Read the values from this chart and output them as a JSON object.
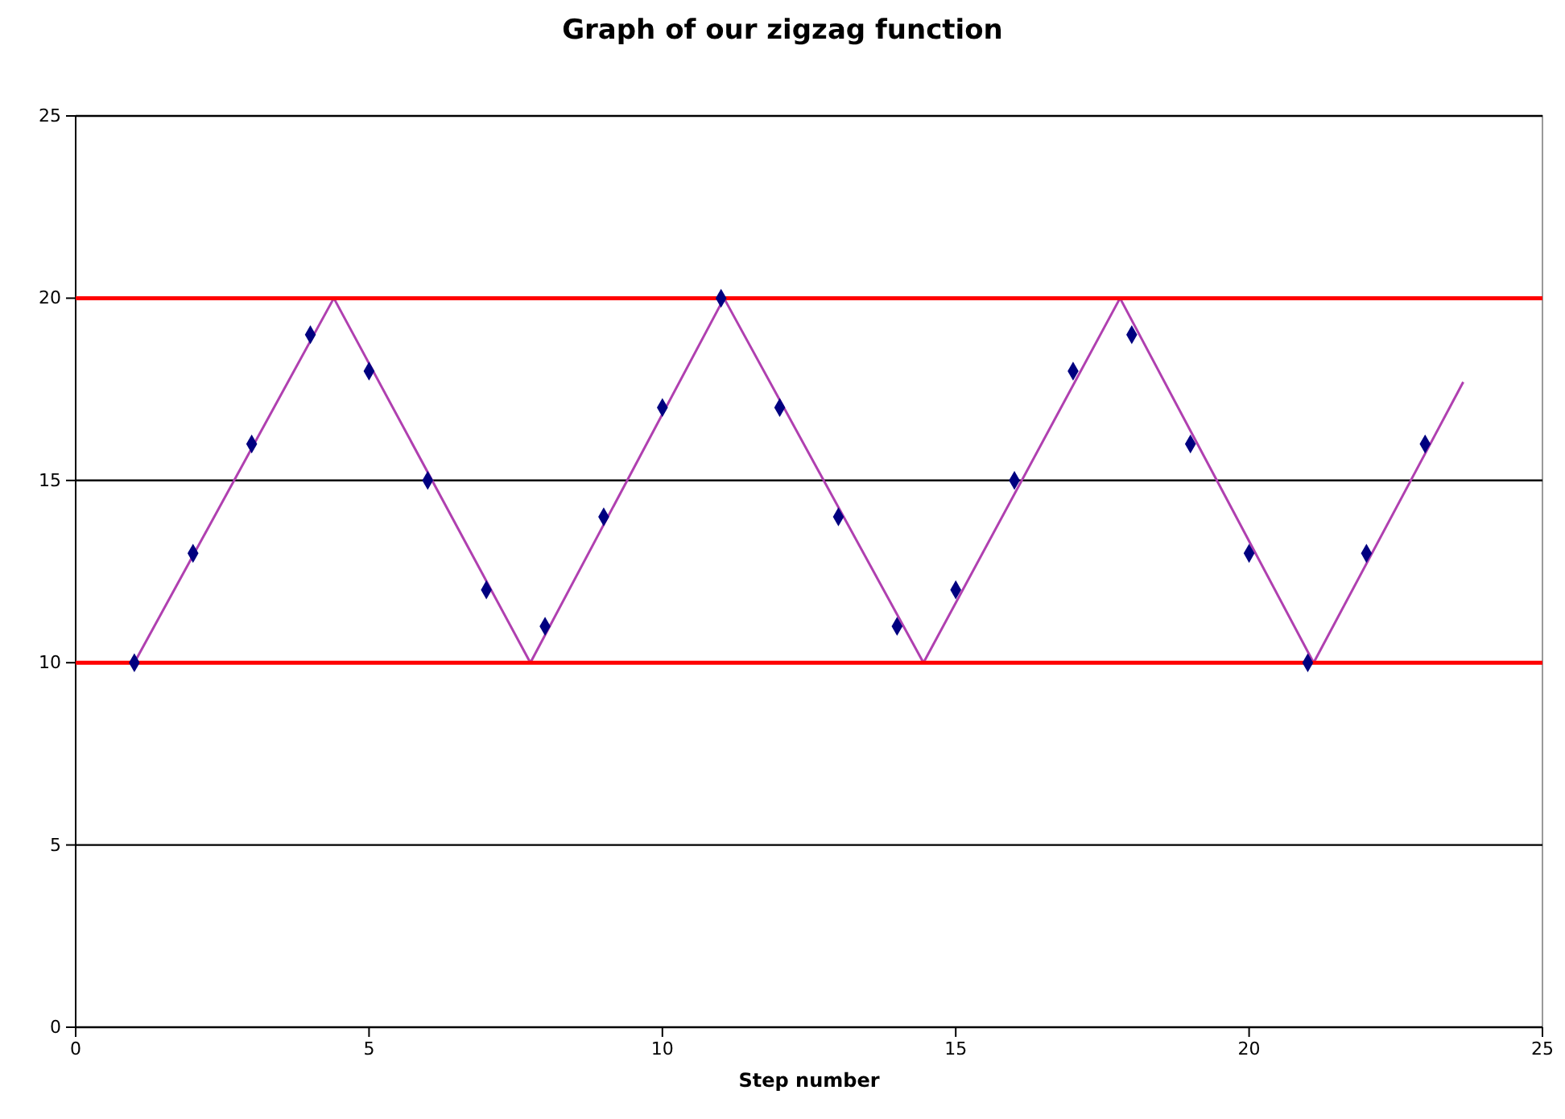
{
  "chart_data": {
    "type": "scatter",
    "title": "Graph of our zigzag function",
    "xlabel": "Step number",
    "xlim": [
      0,
      25
    ],
    "xticks": [
      0,
      5,
      10,
      15,
      20,
      25
    ],
    "ylim": [
      0,
      25
    ],
    "yticks": [
      0,
      5,
      10,
      15,
      20,
      25
    ],
    "grid": "y",
    "series": [
      {
        "type": "scatter",
        "color": "#000080",
        "marker": "diamond",
        "x": [
          1,
          2,
          3,
          4,
          5,
          6,
          7,
          8,
          9,
          10,
          11,
          12,
          13,
          14,
          15,
          16,
          17,
          18,
          19,
          20,
          21,
          22,
          23
        ],
        "values": [
          10,
          13,
          16,
          19,
          18,
          15,
          12,
          11,
          14,
          17,
          20,
          17,
          14,
          11,
          12,
          15,
          18,
          19,
          16,
          13,
          10,
          13,
          16
        ]
      },
      {
        "type": "line",
        "color": "#b040b0",
        "marker": "none",
        "line_style": "solid",
        "x": [
          1,
          4.4,
          7.75,
          11.05,
          14.45,
          17.8,
          21.1,
          23.65
        ],
        "values": [
          10,
          20,
          10,
          20,
          10,
          20,
          10,
          17.7
        ]
      },
      {
        "type": "line",
        "color": "#ff0000",
        "marker": "none",
        "line_style": "solid",
        "x": [
          0,
          25
        ],
        "values": [
          20,
          20
        ]
      },
      {
        "type": "line",
        "color": "#ff0000",
        "marker": "none",
        "line_style": "solid",
        "x": [
          0,
          25
        ],
        "values": [
          10,
          10
        ]
      }
    ]
  }
}
